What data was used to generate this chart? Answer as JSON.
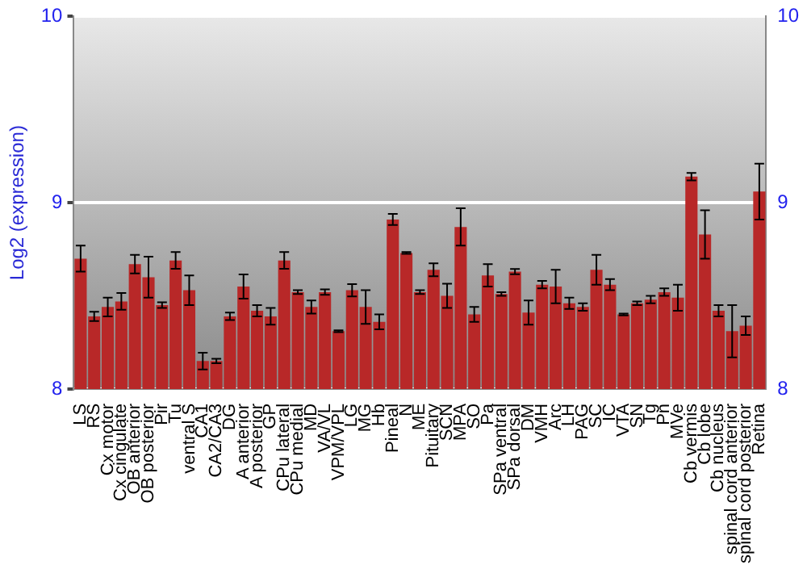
{
  "chart_data": {
    "type": "bar",
    "ylabel": "Log2 (expression)",
    "categories": [
      "LS",
      "RS",
      "Cx motor",
      "Cx cingulate",
      "OB anterior",
      "OB posterior",
      "Pir",
      "Tu",
      "ventral S",
      "CA1",
      "CA2/CA3",
      "DG",
      "A anterior",
      "A posterior",
      "GP",
      "CPu lateral",
      "CPu medial",
      "MD",
      "VA/VL",
      "VPM/VPL",
      "LG",
      "MG",
      "Hb",
      "Pineal",
      "N",
      "ME",
      "Pituitary",
      "SCN",
      "MPA",
      "SO",
      "Pa",
      "SPa ventral",
      "SPa dorsal",
      "DM",
      "VMH",
      "Arc",
      "LH",
      "PAG",
      "SC",
      "IC",
      "VTA",
      "SN",
      "Tg",
      "Pn",
      "MVe",
      "Cb vermis",
      "Cb lobe",
      "Cb nucleus",
      "spinal cord anterior",
      "spinal cord posterior",
      "Retina"
    ],
    "values": [
      8.7,
      8.39,
      8.44,
      8.47,
      8.67,
      8.6,
      8.45,
      8.69,
      8.53,
      8.15,
      8.15,
      8.39,
      8.55,
      8.42,
      8.39,
      8.69,
      8.52,
      8.44,
      8.52,
      8.31,
      8.53,
      8.44,
      8.36,
      8.91,
      8.73,
      8.52,
      8.64,
      8.5,
      8.87,
      8.4,
      8.61,
      8.51,
      8.63,
      8.41,
      8.56,
      8.55,
      8.46,
      8.44,
      8.64,
      8.56,
      8.4,
      8.46,
      8.48,
      8.52,
      8.49,
      9.14,
      8.83,
      8.42,
      8.31,
      8.34,
      9.06
    ],
    "errors": [
      0.07,
      0.025,
      0.05,
      0.045,
      0.05,
      0.11,
      0.015,
      0.045,
      0.08,
      0.045,
      0.012,
      0.02,
      0.065,
      0.03,
      0.045,
      0.045,
      0.01,
      0.035,
      0.015,
      0.005,
      0.033,
      0.09,
      0.04,
      0.03,
      0.005,
      0.01,
      0.035,
      0.065,
      0.1,
      0.04,
      0.06,
      0.01,
      0.014,
      0.065,
      0.02,
      0.09,
      0.03,
      0.02,
      0.08,
      0.03,
      0.005,
      0.01,
      0.02,
      0.02,
      0.07,
      0.02,
      0.13,
      0.03,
      0.14,
      0.05,
      0.15
    ],
    "color": "#b82828",
    "ylim": [
      8,
      10
    ],
    "yticks": [
      8,
      9,
      10
    ],
    "y2lim": [
      8,
      10
    ],
    "y2ticks": [
      8,
      9,
      10
    ],
    "grid": "y"
  }
}
